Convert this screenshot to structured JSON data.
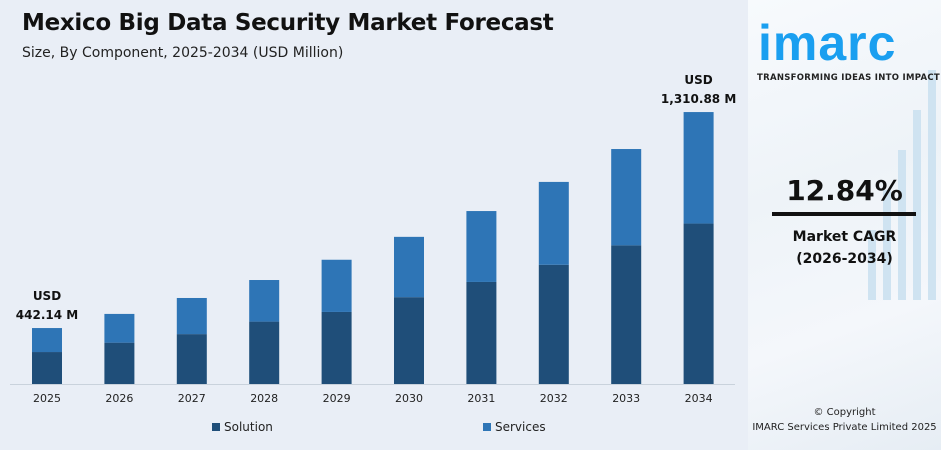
{
  "header": {
    "title": "Mexico Big Data Security Market Forecast",
    "subtitle": "Size, By Component, 2025-2034 (USD Million)"
  },
  "chart_data": {
    "type": "bar",
    "stacked": true,
    "title": "Mexico Big Data Security Market Forecast",
    "subtitle": "Size, By Component, 2025-2034 (USD Million)",
    "categories": [
      "2025",
      "2026",
      "2027",
      "2028",
      "2029",
      "2030",
      "2031",
      "2032",
      "2033",
      "2034"
    ],
    "series": [
      {
        "name": "Solution",
        "color": "#1f4e79",
        "values": [
          252.5,
          294.4,
          326.5,
          381.2,
          415.7,
          477.3,
          538.5,
          607.6,
          685.7,
          773.4
        ]
      },
      {
        "name": "Services",
        "color": "#2e75b6",
        "values": [
          189.6,
          204.5,
          236.5,
          254.1,
          301.1,
          331.6,
          374.2,
          422.3,
          476.5,
          537.5
        ]
      }
    ],
    "annotations": [
      {
        "category": "2025",
        "line1": "USD",
        "line2": "442.14 M"
      },
      {
        "category": "2034",
        "line1": "USD",
        "line2": "1,310.88 M"
      }
    ],
    "legend": "bottom",
    "grid": false,
    "y_axis_visible": false
  },
  "sidebar": {
    "logo": "imarc",
    "tagline": "TRANSFORMING IDEAS INTO IMPACT",
    "cagr_value": "12.84%",
    "cagr_label": "Market CAGR",
    "cagr_period": "(2026-2034)",
    "copyright": "© Copyright",
    "company": "IMARC Services Private Limited 2025"
  }
}
